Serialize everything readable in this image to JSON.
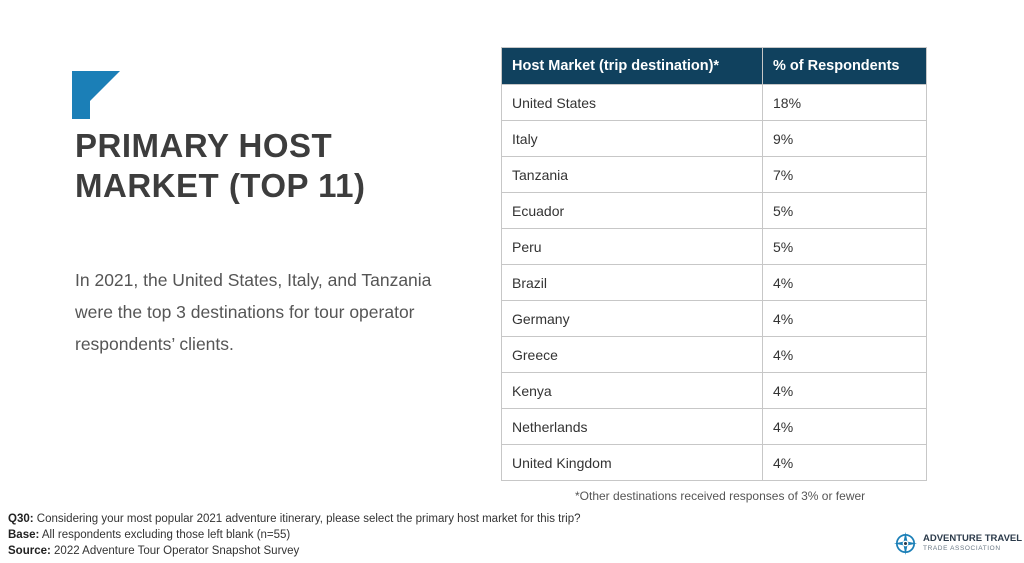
{
  "title": "PRIMARY HOST MARKET (TOP 11)",
  "lead": "In 2021, the United States, Italy, and Tanzania were the top 3 destinations for tour operator respondents’ clients.",
  "table": {
    "headers": [
      "Host Market (trip destination)*",
      "% of Respondents"
    ],
    "rows": [
      [
        "United States",
        "18%"
      ],
      [
        "Italy",
        "9%"
      ],
      [
        "Tanzania",
        "7%"
      ],
      [
        "Ecuador",
        "5%"
      ],
      [
        "Peru",
        "5%"
      ],
      [
        "Brazil",
        "4%"
      ],
      [
        "Germany",
        "4%"
      ],
      [
        "Greece",
        "4%"
      ],
      [
        "Kenya",
        "4%"
      ],
      [
        "Netherlands",
        "4%"
      ],
      [
        "United Kingdom",
        "4%"
      ]
    ]
  },
  "footnote": "*Other destinations received responses of 3% or fewer",
  "notes": {
    "q_label": "Q30:",
    "q_text": " Considering your most popular 2021 adventure itinerary, please select the primary host market for this trip?",
    "base_label": "Base:",
    "base_text": " All respondents excluding those left blank (n=55)",
    "source_label": "Source:",
    "source_text": " 2022 Adventure Tour Operator Snapshot Survey"
  },
  "logo": {
    "line1": "ADVENTURE TRAVEL",
    "line2": "TRADE ASSOCIATION",
    "icon": "globe-compass-icon"
  },
  "colors": {
    "accent_blue": "#1b7fb7",
    "header_navy": "#10415e"
  }
}
